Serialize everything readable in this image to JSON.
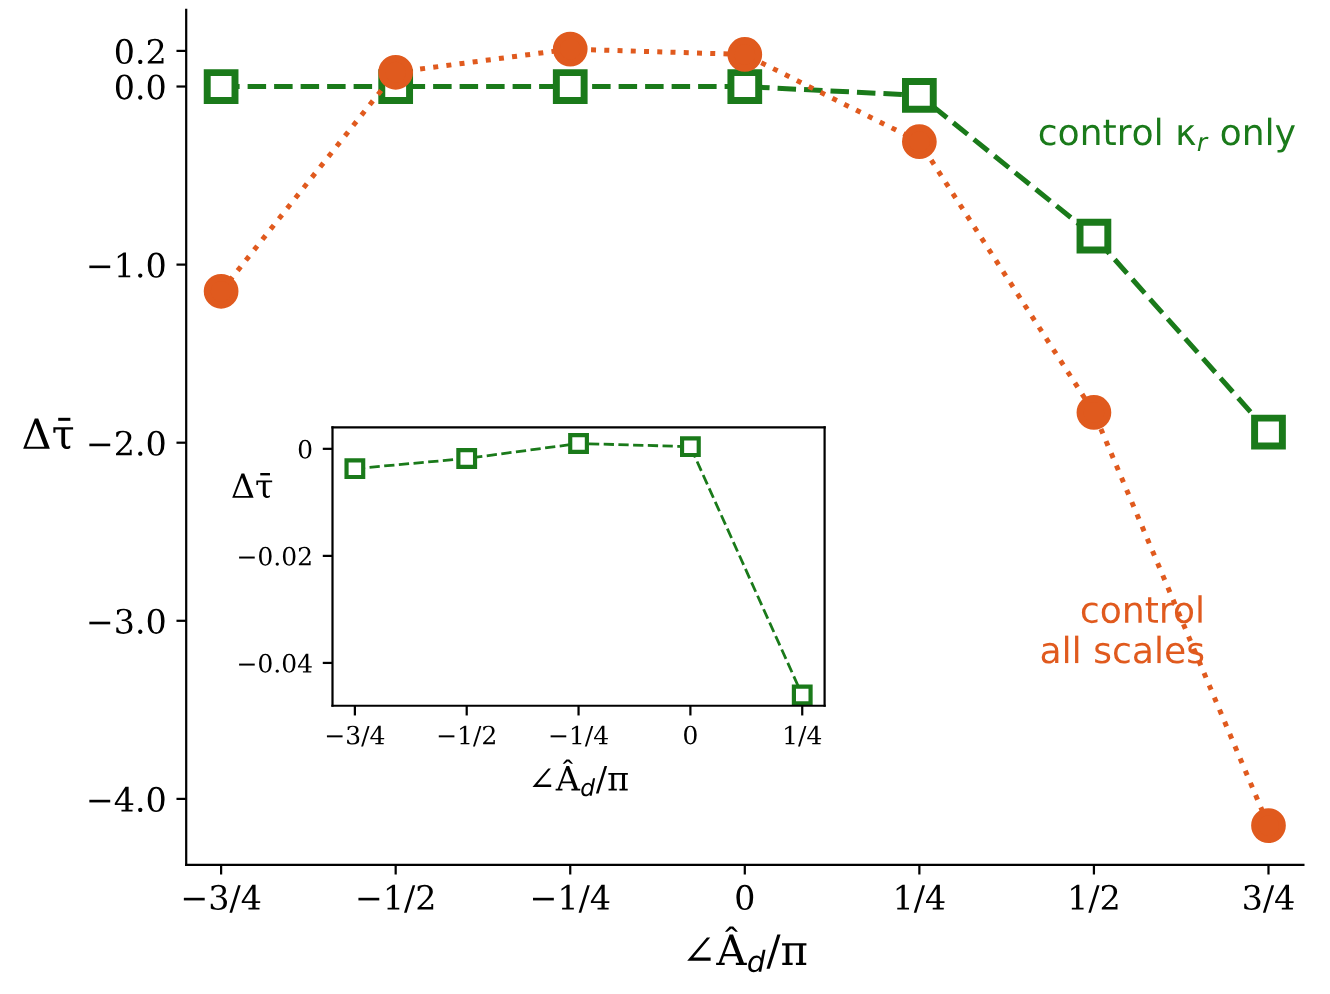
{
  "chart_data": [
    {
      "type": "line",
      "xlabel": "∠Â$_{d}$/π",
      "ylabel": "Δτ̄",
      "categories": [
        "−3/4",
        "−1/2",
        "−1/4",
        "0",
        "1/4",
        "1/2",
        "3/4"
      ],
      "series": [
        {
          "name": "control κ$_{r}$ only",
          "color": "#1a7a1a",
          "values": [
            0.0,
            0.0,
            0.0,
            0.0,
            -0.05,
            -0.84,
            -1.94
          ],
          "marker": "square",
          "line_style": "dashed"
        },
        {
          "name": "control\nall scales",
          "color": "#e05a1e",
          "values": [
            -1.15,
            0.08,
            0.21,
            0.18,
            -0.31,
            -1.83,
            -4.15
          ],
          "marker": "circle",
          "line_style": "dotted"
        }
      ],
      "ylim": [
        -4.37,
        0.43
      ],
      "yticks": [
        {
          "value": 0.2,
          "label": "0.2"
        },
        {
          "value": 0.0,
          "label": "0.0"
        },
        {
          "value": -1.0,
          "label": "−1.0"
        },
        {
          "value": -2.0,
          "label": "−2.0"
        },
        {
          "value": -3.0,
          "label": "−3.0"
        },
        {
          "value": -4.0,
          "label": "−4.0"
        }
      ],
      "grid": false,
      "legend": false
    },
    {
      "type": "line",
      "xlabel": "∠Â$_{d}$/π",
      "ylabel": "Δτ̄",
      "categories": [
        "−3/4",
        "−1/2",
        "−1/4",
        "0",
        "1/4"
      ],
      "series": [
        {
          "color": "#1a7a1a",
          "values": [
            -0.0037,
            -0.0018,
            0.001,
            0.0004,
            -0.046
          ],
          "marker": "square",
          "line_style": "dashed"
        }
      ],
      "ylim": [
        -0.048,
        0.004
      ],
      "yticks": [
        {
          "value": 0,
          "label": "0"
        },
        {
          "value": -0.02,
          "label": "−0.02"
        },
        {
          "value": -0.04,
          "label": "−0.04"
        }
      ],
      "grid": false,
      "legend": false
    }
  ]
}
